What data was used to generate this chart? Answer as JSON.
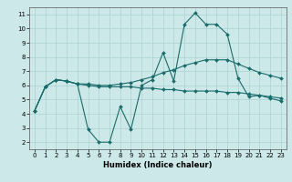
{
  "xlabel": "Humidex (Indice chaleur)",
  "x_ticks": [
    0,
    1,
    2,
    3,
    4,
    5,
    6,
    7,
    8,
    9,
    10,
    11,
    12,
    13,
    14,
    15,
    16,
    17,
    18,
    19,
    20,
    21,
    22,
    23
  ],
  "xlim": [
    -0.5,
    23.5
  ],
  "ylim": [
    1.5,
    11.5
  ],
  "y_ticks": [
    2,
    3,
    4,
    5,
    6,
    7,
    8,
    9,
    10,
    11
  ],
  "bg_color": "#cce8e8",
  "grid_color": "#b0d4d4",
  "line_color": "#1a6b6b",
  "line1_y": [
    4.2,
    5.9,
    6.4,
    6.3,
    6.1,
    2.9,
    2.0,
    2.0,
    4.5,
    2.9,
    6.0,
    6.4,
    8.3,
    6.3,
    10.3,
    11.1,
    10.3,
    10.3,
    9.6,
    6.5,
    5.2,
    5.3,
    5.1,
    4.9
  ],
  "line2_y": [
    4.2,
    5.9,
    6.4,
    6.3,
    6.1,
    6.1,
    6.0,
    6.0,
    6.1,
    6.2,
    6.4,
    6.6,
    6.9,
    7.1,
    7.4,
    7.6,
    7.8,
    7.8,
    7.8,
    7.5,
    7.2,
    6.9,
    6.7,
    6.5
  ],
  "line3_y": [
    4.2,
    5.9,
    6.4,
    6.3,
    6.1,
    6.0,
    5.9,
    5.9,
    5.9,
    5.9,
    5.8,
    5.8,
    5.7,
    5.7,
    5.6,
    5.6,
    5.6,
    5.6,
    5.5,
    5.5,
    5.4,
    5.3,
    5.2,
    5.1
  ],
  "tick_fontsize": 5,
  "xlabel_fontsize": 6
}
